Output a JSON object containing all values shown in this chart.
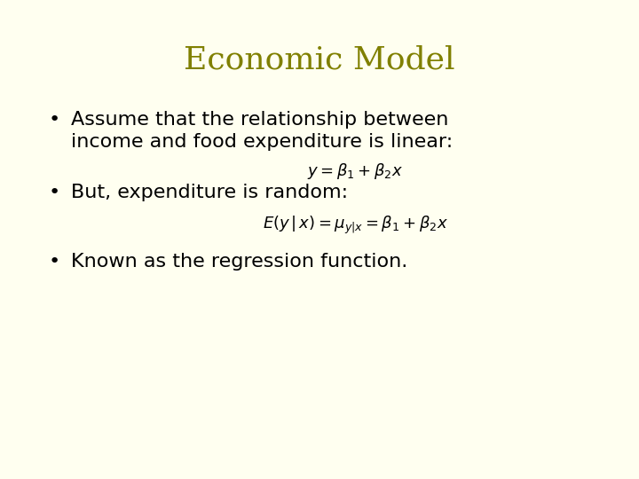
{
  "background_color": "#FFFFF0",
  "title": "Economic Model",
  "title_color": "#808000",
  "title_fontsize": 26,
  "bullet1_line1": "Assume that the relationship between",
  "bullet1_line2": "income and food expenditure is linear:",
  "formula1": "$y = \\beta_1 + \\beta_2 x$",
  "bullet2": "But, expenditure is random:",
  "formula2": "$E(y\\,|\\,x) = \\mu_{y|x} = \\beta_1 + \\beta_2 x$",
  "bullet3": "Known as the regression function.",
  "text_color": "#000000",
  "text_fontsize": 16,
  "formula_fontsize": 13,
  "bullet_symbol": "•"
}
